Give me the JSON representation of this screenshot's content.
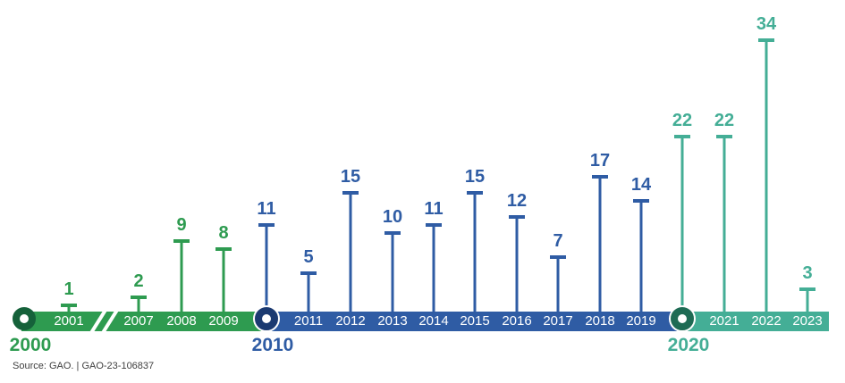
{
  "source_note": "Source: GAO.  |  GAO-23-106837",
  "colors": {
    "green": "#2E9B50",
    "green_ring": "#15613A",
    "blue": "#2F5CA4",
    "blue_ring": "#1B3A71",
    "teal": "#44AE96",
    "teal_ring": "#1E6B54",
    "year_text": "#FFFFFF",
    "source_text": "#404040",
    "background": "#FFFFFF"
  },
  "chart_data": {
    "type": "bar",
    "variant": "timeline-lollipop",
    "title": "",
    "xlabel": "",
    "ylabel": "",
    "ylim": [
      0,
      34
    ],
    "grid": false,
    "legend": false,
    "axis_break_between": [
      "2001",
      "2007"
    ],
    "segments": [
      {
        "id": "2000s",
        "decade_label": "2000",
        "color_key": "green"
      },
      {
        "id": "2010s",
        "decade_label": "2010",
        "color_key": "blue"
      },
      {
        "id": "2020s",
        "decade_label": "2020",
        "color_key": "teal"
      }
    ],
    "items": [
      {
        "year": "2000",
        "value": null,
        "group": "green",
        "decade_marker": true
      },
      {
        "year": "2001",
        "value": 1,
        "group": "green"
      },
      {
        "year": "2007",
        "value": 2,
        "group": "green"
      },
      {
        "year": "2008",
        "value": 9,
        "group": "green"
      },
      {
        "year": "2009",
        "value": 8,
        "group": "green"
      },
      {
        "year": "2010",
        "value": 11,
        "group": "blue",
        "decade_marker": true
      },
      {
        "year": "2011",
        "value": 5,
        "group": "blue"
      },
      {
        "year": "2012",
        "value": 15,
        "group": "blue"
      },
      {
        "year": "2013",
        "value": 10,
        "group": "blue"
      },
      {
        "year": "2014",
        "value": 11,
        "group": "blue"
      },
      {
        "year": "2015",
        "value": 15,
        "group": "blue"
      },
      {
        "year": "2016",
        "value": 12,
        "group": "blue"
      },
      {
        "year": "2017",
        "value": 7,
        "group": "blue"
      },
      {
        "year": "2018",
        "value": 17,
        "group": "blue"
      },
      {
        "year": "2019",
        "value": 14,
        "group": "blue"
      },
      {
        "year": "2020",
        "value": 22,
        "group": "teal",
        "decade_marker": true
      },
      {
        "year": "2021",
        "value": 22,
        "group": "teal"
      },
      {
        "year": "2022",
        "value": 34,
        "group": "teal"
      },
      {
        "year": "2023",
        "value": 3,
        "group": "teal"
      }
    ]
  }
}
